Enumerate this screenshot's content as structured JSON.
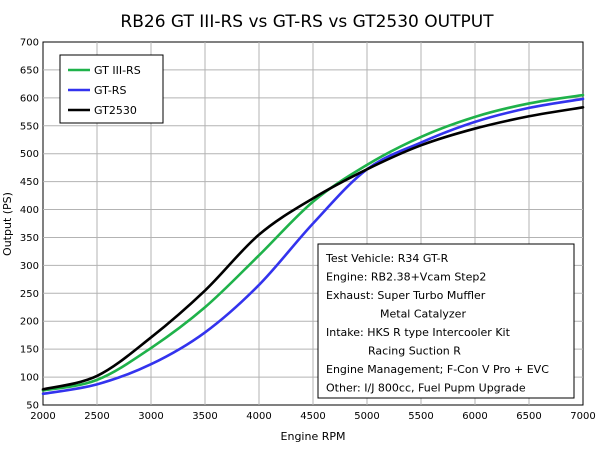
{
  "chart_data": {
    "type": "line",
    "title": "RB26 GT III-RS vs GT-RS vs GT2530 OUTPUT",
    "xlabel": "Engine RPM",
    "ylabel": "Output (PS)",
    "xlim": [
      2000,
      7000
    ],
    "ylim": [
      50,
      700
    ],
    "x_ticks": [
      2000,
      2500,
      3000,
      3500,
      4000,
      4500,
      5000,
      5500,
      6000,
      6500,
      7000
    ],
    "y_ticks": [
      50,
      100,
      150,
      200,
      250,
      300,
      350,
      400,
      450,
      500,
      550,
      600,
      650,
      700
    ],
    "grid": true,
    "legend_position": "top-left",
    "x": [
      2000,
      2500,
      3000,
      3500,
      4000,
      4500,
      5000,
      5500,
      6000,
      6500,
      7000
    ],
    "series": [
      {
        "name": "GT III-RS",
        "color": "#1fb24a",
        "values": [
          76,
          95,
          152,
          225,
          318,
          414,
          480,
          530,
          566,
          590,
          605
        ]
      },
      {
        "name": "GT-RS",
        "color": "#3333ee",
        "values": [
          70,
          87,
          123,
          180,
          265,
          375,
          472,
          520,
          557,
          582,
          598
        ]
      },
      {
        "name": "GT2530",
        "color": "#000000",
        "values": [
          78,
          102,
          171,
          255,
          355,
          420,
          472,
          515,
          545,
          567,
          583
        ]
      }
    ],
    "annotation": [
      "Test Vehicle: R34 GT-R",
      "Engine: RB2.38+Vcam Step2",
      "Exhaust: Super Turbo Muffler",
      "Metal Catalyzer",
      "Intake: HKS R type Intercooler Kit",
      "Racing Suction R",
      "Engine Management; F-Con V Pro + EVC",
      "Other: I/J 800cc, Fuel Pupm Upgrade"
    ]
  }
}
